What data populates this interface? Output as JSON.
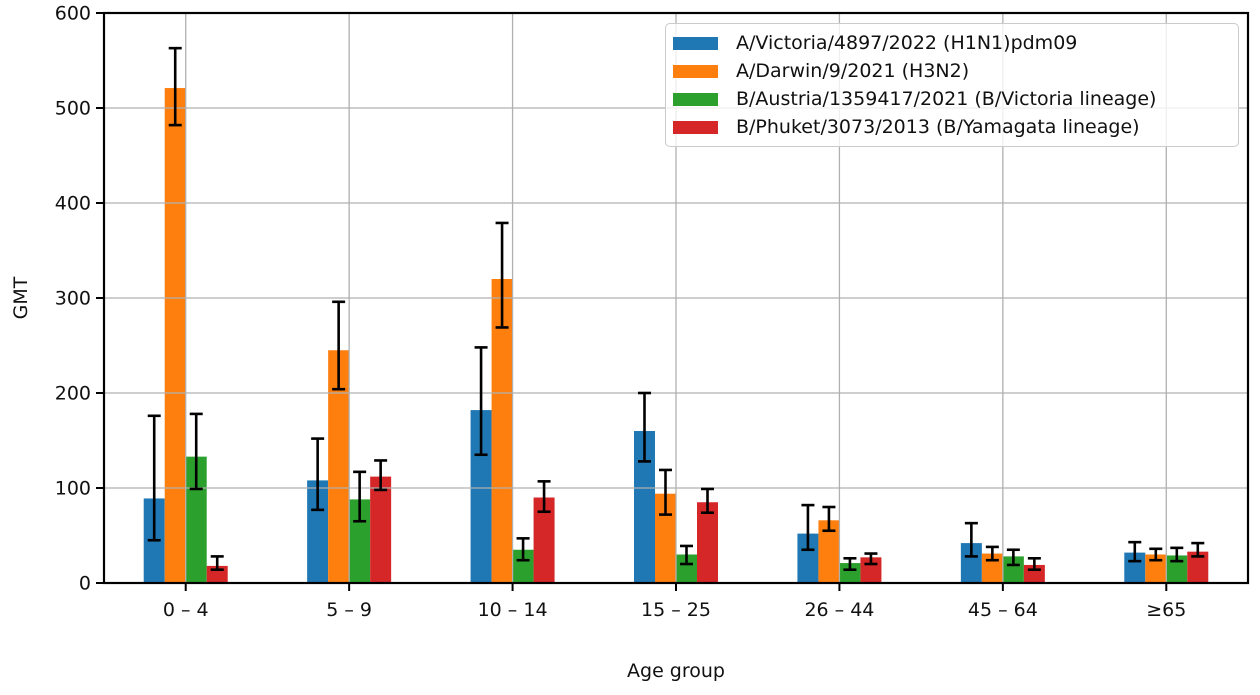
{
  "figure": {
    "background": "#ffffff"
  },
  "chart_data": {
    "type": "bar",
    "title": "",
    "xlabel": "Age group",
    "ylabel": "GMT",
    "ylim": [
      0,
      600
    ],
    "yticks": [
      0,
      100,
      200,
      300,
      400,
      500,
      600
    ],
    "grid": true,
    "grid_color": "#b0b0b0",
    "error_bar_color": "#000000",
    "legend_position": "upper right",
    "categories": [
      "0 – 4",
      "5 – 9",
      "10 – 14",
      "15 – 25",
      "26 – 44",
      "45 – 64",
      "≥65"
    ],
    "series": [
      {
        "name": "A/Victoria/4897/2022 (H1N1)pdm09",
        "color": "#1f77b4",
        "values": [
          89,
          108,
          182,
          160,
          52,
          42,
          32
        ],
        "error_low": [
          45,
          77,
          135,
          128,
          35,
          28,
          23
        ],
        "error_high": [
          176,
          152,
          248,
          200,
          82,
          63,
          43
        ]
      },
      {
        "name": "A/Darwin/9/2021 (H3N2)",
        "color": "#ff7f0e",
        "values": [
          521,
          245,
          320,
          94,
          66,
          31,
          30
        ],
        "error_low": [
          482,
          204,
          269,
          72,
          55,
          24,
          24
        ],
        "error_high": [
          563,
          296,
          379,
          119,
          80,
          38,
          36
        ]
      },
      {
        "name": "B/Austria/1359417/2021 (B/Victoria lineage)",
        "color": "#2ca02c",
        "values": [
          133,
          88,
          35,
          30,
          21,
          28,
          29
        ],
        "error_low": [
          99,
          65,
          24,
          20,
          14,
          19,
          23
        ],
        "error_high": [
          178,
          117,
          47,
          39,
          26,
          35,
          37
        ]
      },
      {
        "name": "B/Phuket/3073/2013 (B/Yamagata lineage)",
        "color": "#d62728",
        "values": [
          18,
          112,
          90,
          85,
          27,
          19,
          33
        ],
        "error_low": [
          14,
          98,
          75,
          74,
          20,
          14,
          28
        ],
        "error_high": [
          28,
          129,
          107,
          99,
          31,
          26,
          42
        ]
      }
    ]
  }
}
